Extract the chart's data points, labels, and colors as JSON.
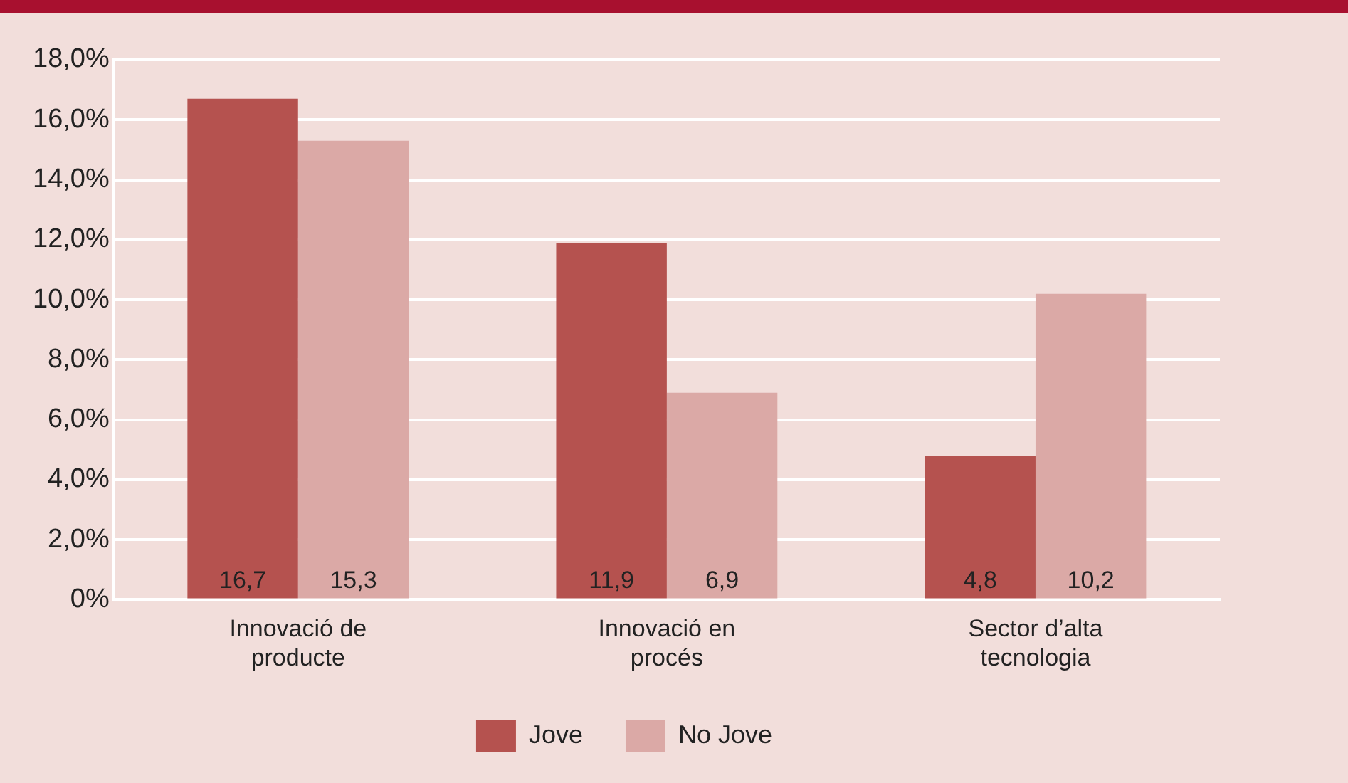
{
  "chart_data": {
    "type": "bar",
    "categories": [
      "Innovació de producte",
      "Innovació en procés",
      "Sector d’alta tecnologia"
    ],
    "series": [
      {
        "name": "Jove",
        "color": "#b5524f",
        "values": [
          16.7,
          11.9,
          4.8
        ],
        "value_labels": [
          "16,7",
          "11,9",
          "4,8"
        ]
      },
      {
        "name": "No Jove",
        "color": "#dba9a6",
        "values": [
          15.3,
          6.9,
          10.2
        ],
        "value_labels": [
          "15,3",
          "6,9",
          "10,2"
        ]
      }
    ],
    "ylim": [
      0,
      18
    ],
    "yticks": [
      {
        "value": 0,
        "label": "0%"
      },
      {
        "value": 2,
        "label": "2,0%"
      },
      {
        "value": 4,
        "label": "4,0%"
      },
      {
        "value": 6,
        "label": "6,0%"
      },
      {
        "value": 8,
        "label": "8,0%"
      },
      {
        "value": 10,
        "label": "10,0%"
      },
      {
        "value": 12,
        "label": "12,0%"
      },
      {
        "value": 14,
        "label": "14,0%"
      },
      {
        "value": 16,
        "label": "16,0%"
      },
      {
        "value": 18,
        "label": "18,0%"
      }
    ],
    "grid": "y",
    "legend": "bottom"
  }
}
